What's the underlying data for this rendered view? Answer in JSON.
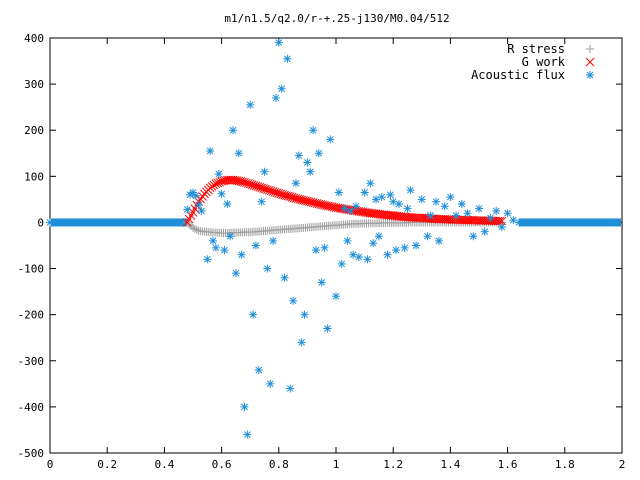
{
  "chart_data": {
    "type": "scatter",
    "title": "m1/n1.5/q2.0/r-+.25-j130/M0.04/512",
    "xlabel": "",
    "ylabel": "",
    "xlim": [
      0,
      2
    ],
    "ylim": [
      -500,
      400
    ],
    "xticks": [
      0,
      0.2,
      0.4,
      0.6,
      0.8,
      1,
      1.2,
      1.4,
      1.6,
      1.8,
      2
    ],
    "xtick_labels": [
      "0",
      "0.2",
      "0.4",
      "0.6",
      "0.8",
      "1",
      "1.2",
      "1.4",
      "1.6",
      "1.8",
      "2"
    ],
    "yticks": [
      -500,
      -400,
      -300,
      -200,
      -100,
      0,
      100,
      200,
      300,
      400
    ],
    "ytick_labels": [
      "-500",
      "-400",
      "-300",
      "-200",
      "-100",
      "0",
      "100",
      "200",
      "300",
      "400"
    ],
    "grid": false,
    "legend_position": "top-right",
    "series": [
      {
        "name": "R stress",
        "marker": "plus",
        "color": "#a0a0a0",
        "x": [
          0.48,
          0.5,
          0.52,
          0.54,
          0.56,
          0.58,
          0.6,
          0.62,
          0.64,
          0.66,
          0.68,
          0.7,
          0.72,
          0.74,
          0.76,
          0.78,
          0.8,
          0.82,
          0.84,
          0.86,
          0.88,
          0.9,
          0.92,
          0.94,
          0.96,
          0.98,
          1.0,
          1.02,
          1.04,
          1.06,
          1.08,
          1.1,
          1.12,
          1.14,
          1.16,
          1.18,
          1.2,
          1.22,
          1.24,
          1.26,
          1.28,
          1.3,
          1.32,
          1.34,
          1.36,
          1.38,
          1.4,
          1.42,
          1.44,
          1.46,
          1.48,
          1.5,
          1.52,
          1.54,
          1.56,
          1.58
        ],
        "y": [
          0,
          -12,
          -18,
          -20,
          -21,
          -22,
          -23,
          -23,
          -22,
          -22,
          -21,
          -21,
          -20,
          -19,
          -18,
          -17,
          -16,
          -15,
          -14,
          -13,
          -12,
          -11,
          -10,
          -9,
          -8,
          -7,
          -6,
          -5,
          -4,
          -3,
          -3,
          -2,
          -2,
          -2,
          -1,
          -1,
          -1,
          -1,
          -1,
          0,
          0,
          0,
          0,
          0,
          0,
          0,
          0,
          0,
          0,
          0,
          0,
          0,
          0,
          0,
          0,
          0
        ]
      },
      {
        "name": "G work",
        "marker": "cross",
        "color": "#ff0000",
        "x": [
          0.48,
          0.5,
          0.52,
          0.54,
          0.56,
          0.58,
          0.6,
          0.62,
          0.64,
          0.66,
          0.68,
          0.7,
          0.72,
          0.74,
          0.76,
          0.78,
          0.8,
          0.82,
          0.84,
          0.86,
          0.88,
          0.9,
          0.92,
          0.94,
          0.96,
          0.98,
          1.0,
          1.02,
          1.04,
          1.06,
          1.08,
          1.1,
          1.12,
          1.14,
          1.16,
          1.18,
          1.2,
          1.22,
          1.24,
          1.26,
          1.28,
          1.3,
          1.32,
          1.34,
          1.36,
          1.38,
          1.4,
          1.42,
          1.44,
          1.46,
          1.48,
          1.5,
          1.52,
          1.54,
          1.56,
          1.58
        ],
        "y": [
          0,
          22,
          45,
          62,
          75,
          84,
          89,
          92,
          92,
          90,
          87,
          83,
          79,
          75,
          71,
          67,
          63,
          59,
          56,
          52,
          49,
          46,
          43,
          40,
          37,
          35,
          32,
          30,
          28,
          26,
          24,
          22,
          20,
          19,
          17,
          16,
          15,
          13,
          12,
          11,
          10,
          10,
          9,
          8,
          7,
          7,
          6,
          6,
          5,
          5,
          5,
          4,
          4,
          4,
          3,
          3
        ]
      },
      {
        "name": "Acoustic flux",
        "marker": "star",
        "color": "#1f8fd8",
        "x": [
          0.0,
          0.03,
          0.06,
          0.09,
          0.12,
          0.15,
          0.18,
          0.21,
          0.24,
          0.27,
          0.3,
          0.33,
          0.36,
          0.39,
          0.42,
          0.45,
          0.48,
          0.49,
          0.5,
          0.51,
          0.52,
          0.53,
          0.55,
          0.56,
          0.57,
          0.58,
          0.59,
          0.6,
          0.61,
          0.62,
          0.63,
          0.64,
          0.65,
          0.66,
          0.67,
          0.68,
          0.69,
          0.7,
          0.71,
          0.72,
          0.73,
          0.74,
          0.75,
          0.76,
          0.77,
          0.78,
          0.79,
          0.8,
          0.81,
          0.82,
          0.83,
          0.84,
          0.85,
          0.86,
          0.87,
          0.88,
          0.89,
          0.9,
          0.91,
          0.92,
          0.93,
          0.94,
          0.95,
          0.96,
          0.97,
          0.98,
          1.0,
          1.01,
          1.02,
          1.03,
          1.04,
          1.05,
          1.06,
          1.07,
          1.08,
          1.1,
          1.11,
          1.12,
          1.13,
          1.14,
          1.15,
          1.16,
          1.18,
          1.19,
          1.2,
          1.21,
          1.22,
          1.24,
          1.25,
          1.26,
          1.28,
          1.3,
          1.32,
          1.33,
          1.35,
          1.36,
          1.38,
          1.4,
          1.42,
          1.44,
          1.46,
          1.48,
          1.5,
          1.52,
          1.54,
          1.56,
          1.58,
          1.6,
          1.62,
          1.64,
          1.67,
          1.7,
          1.73,
          1.76,
          1.79,
          1.82,
          1.85,
          1.88,
          1.91,
          1.94
        ],
        "y": [
          0,
          0,
          0,
          0,
          0,
          0,
          0,
          0,
          0,
          0,
          0,
          0,
          0,
          0,
          0,
          0,
          28,
          60,
          65,
          58,
          38,
          25,
          -80,
          155,
          -40,
          -55,
          105,
          62,
          -60,
          40,
          -30,
          200,
          -110,
          150,
          -70,
          -400,
          -460,
          255,
          -200,
          -50,
          -320,
          45,
          110,
          -100,
          -350,
          -40,
          270,
          390,
          290,
          -120,
          355,
          -360,
          -170,
          85,
          145,
          -260,
          -200,
          130,
          110,
          200,
          -60,
          150,
          -130,
          -55,
          -230,
          180,
          -160,
          65,
          -90,
          30,
          -40,
          25,
          -70,
          35,
          -75,
          65,
          -80,
          85,
          -45,
          50,
          -30,
          55,
          -70,
          60,
          45,
          -60,
          40,
          -55,
          30,
          70,
          -50,
          50,
          -30,
          15,
          45,
          -40,
          35,
          55,
          15,
          40,
          20,
          -30,
          30,
          -20,
          10,
          25,
          -10,
          20,
          5,
          0,
          0,
          0,
          0,
          0,
          0,
          0,
          0,
          0,
          0,
          0
        ]
      }
    ]
  }
}
